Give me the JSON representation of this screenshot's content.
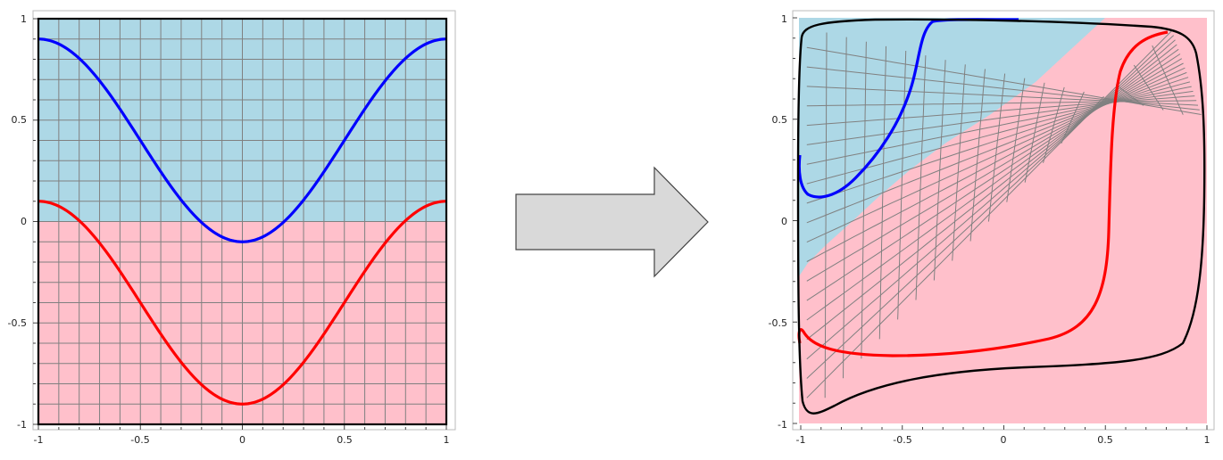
{
  "left_plot": {
    "x_ticks": [
      "-1",
      "-0.5",
      "0",
      "0.5",
      "1"
    ],
    "y_ticks": [
      "1",
      "0.5",
      "0",
      "-0.5",
      "-1"
    ]
  },
  "right_plot": {
    "x_ticks": [
      "-1",
      "-0.5",
      "0",
      "0.5",
      "1"
    ],
    "y_ticks": [
      "1",
      "0.5",
      "0",
      "-0.5",
      "-1"
    ]
  },
  "colors": {
    "upper_region": "#add8e6",
    "lower_region": "#ffc0cb",
    "grid": "#808080",
    "blue_curve": "#0000ff",
    "red_curve": "#ff0000",
    "boundary": "#000000",
    "arrow_fill": "#d9d9d9"
  },
  "icons": {
    "arrow": "right-arrow-icon"
  }
}
